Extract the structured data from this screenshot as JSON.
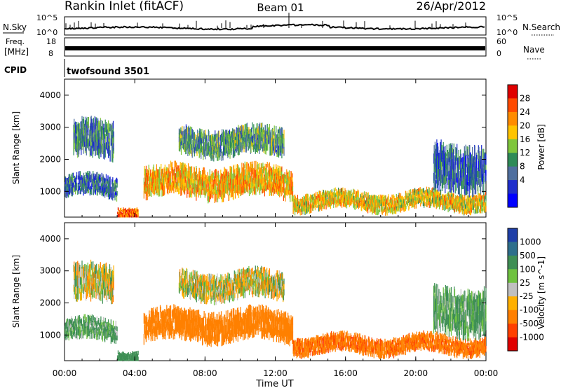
{
  "header": {
    "station": "Rankin Inlet (fitACF)",
    "beam": "Beam 01",
    "date": "26/Apr/2012"
  },
  "strips": {
    "nsky_label": "N.Sky",
    "nsky_top": "10^5",
    "nsky_bottom": "10^0",
    "nsearch_label": "N.Search",
    "nsearch_top": "10^5",
    "nsearch_bottom": "10^0",
    "freq_label_1": "Freq.",
    "freq_label_2": "[MHz]",
    "freq_top": "18",
    "freq_bottom": "8",
    "nave_label": "Nave",
    "nave_top": "60",
    "nave_bottom": "0",
    "cpid_label": "CPID",
    "cpid_value": "twofsound 3501"
  },
  "colors": {
    "background": "#ffffff",
    "axis": "#000000"
  },
  "chart_data": [
    {
      "type": "heatmap",
      "ylabel": "Slant Range [km]",
      "xlabel": "",
      "ylim": [
        200,
        4500
      ],
      "xlim": [
        "00:00",
        "24:00"
      ],
      "y_ticks": [
        1000,
        2000,
        3000,
        4000
      ],
      "x_ticks": [
        "00:00",
        "04:00",
        "08:00",
        "12:00",
        "16:00",
        "20:00",
        "00:00"
      ],
      "colorbar": {
        "label": "Power [dB]",
        "ticks": [
          "28",
          "24",
          "20",
          "16",
          "12",
          "8",
          "4"
        ],
        "colors": [
          "#e00000",
          "#ff4a00",
          "#ff8c00",
          "#ffc400",
          "#7fc63c",
          "#2e8b57",
          "#4f6f9f",
          "#1f2ecc",
          "#0000ff"
        ]
      },
      "echo_bands": [
        {
          "start_ut": 0.5,
          "end_ut": 2.8,
          "range_low": 2000,
          "range_high": 3200,
          "value": 10
        },
        {
          "start_ut": 0.0,
          "end_ut": 3.0,
          "range_low": 800,
          "range_high": 1500,
          "value": 8
        },
        {
          "start_ut": 3.0,
          "end_ut": 4.2,
          "range_low": 250,
          "range_high": 600,
          "value": 26
        },
        {
          "start_ut": 4.5,
          "end_ut": 13.0,
          "range_low": 800,
          "range_high": 1800,
          "value": 22
        },
        {
          "start_ut": 6.5,
          "end_ut": 12.5,
          "range_low": 2100,
          "range_high": 3000,
          "value": 12
        },
        {
          "start_ut": 13.0,
          "end_ut": 24.0,
          "range_low": 400,
          "range_high": 1000,
          "value": 20
        },
        {
          "start_ut": 21.0,
          "end_ut": 24.0,
          "range_low": 1000,
          "range_high": 2500,
          "value": 8
        }
      ]
    },
    {
      "type": "heatmap",
      "ylabel": "Slant Range [km]",
      "xlabel": "Time UT",
      "ylim": [
        200,
        4500
      ],
      "xlim": [
        "00:00",
        "24:00"
      ],
      "y_ticks": [
        1000,
        2000,
        3000,
        4000
      ],
      "x_ticks": [
        "00:00",
        "04:00",
        "08:00",
        "12:00",
        "16:00",
        "20:00",
        "00:00"
      ],
      "colorbar": {
        "label": "Velocity [m s^-1]",
        "ticks": [
          "1000",
          "500",
          "100",
          "25",
          "-25",
          "-100",
          "-500",
          "-1000"
        ],
        "colors": [
          "#1f3fa8",
          "#2e6f8c",
          "#3f8f55",
          "#6fc23f",
          "#c0c0c0",
          "#ffb000",
          "#ff8000",
          "#ff4000",
          "#e00000"
        ]
      },
      "echo_bands": [
        {
          "start_ut": 0.5,
          "end_ut": 2.8,
          "range_low": 2000,
          "range_high": 3200,
          "value": 0
        },
        {
          "start_ut": 0.0,
          "end_ut": 3.0,
          "range_low": 800,
          "range_high": 1500,
          "value": 150
        },
        {
          "start_ut": 3.0,
          "end_ut": 4.2,
          "range_low": 250,
          "range_high": 600,
          "value": 300
        },
        {
          "start_ut": 4.5,
          "end_ut": 13.0,
          "range_low": 800,
          "range_high": 1800,
          "value": -300
        },
        {
          "start_ut": 6.5,
          "end_ut": 12.5,
          "range_low": 2100,
          "range_high": 3000,
          "value": 0
        },
        {
          "start_ut": 13.0,
          "end_ut": 24.0,
          "range_low": 400,
          "range_high": 1000,
          "value": -400
        },
        {
          "start_ut": 21.0,
          "end_ut": 24.0,
          "range_low": 1000,
          "range_high": 2500,
          "value": 150
        }
      ]
    }
  ]
}
